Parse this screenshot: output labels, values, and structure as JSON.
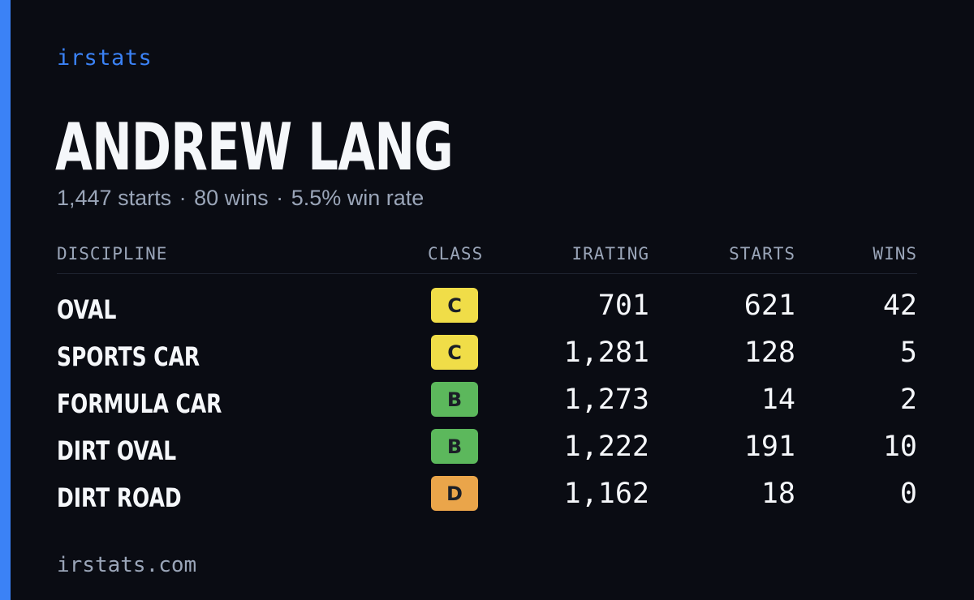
{
  "brand": "irstats",
  "driver_name": "ANDREW LANG",
  "summary": {
    "starts": "1,447 starts",
    "wins": "80 wins",
    "win_rate": "5.5% win rate",
    "separator": "·"
  },
  "columns": {
    "discipline": "DISCIPLINE",
    "class": "CLASS",
    "irating": "IRATING",
    "starts": "STARTS",
    "wins": "WINS"
  },
  "rows": [
    {
      "discipline": "OVAL",
      "class": "C",
      "class_color": "#f0dd48",
      "irating": "701",
      "starts": "621",
      "wins": "42"
    },
    {
      "discipline": "SPORTS CAR",
      "class": "C",
      "class_color": "#f0dd48",
      "irating": "1,281",
      "starts": "128",
      "wins": "5"
    },
    {
      "discipline": "FORMULA CAR",
      "class": "B",
      "class_color": "#5cb85c",
      "irating": "1,273",
      "starts": "14",
      "wins": "2"
    },
    {
      "discipline": "DIRT OVAL",
      "class": "B",
      "class_color": "#5cb85c",
      "irating": "1,222",
      "starts": "191",
      "wins": "10"
    },
    {
      "discipline": "DIRT ROAD",
      "class": "D",
      "class_color": "#eaa54a",
      "irating": "1,162",
      "starts": "18",
      "wins": "0"
    }
  ],
  "footer": "irstats.com",
  "colors": {
    "background": "#0a0c13",
    "accent": "#3b82f6",
    "text": "#f5f7fa",
    "muted": "#9aa5b8"
  }
}
